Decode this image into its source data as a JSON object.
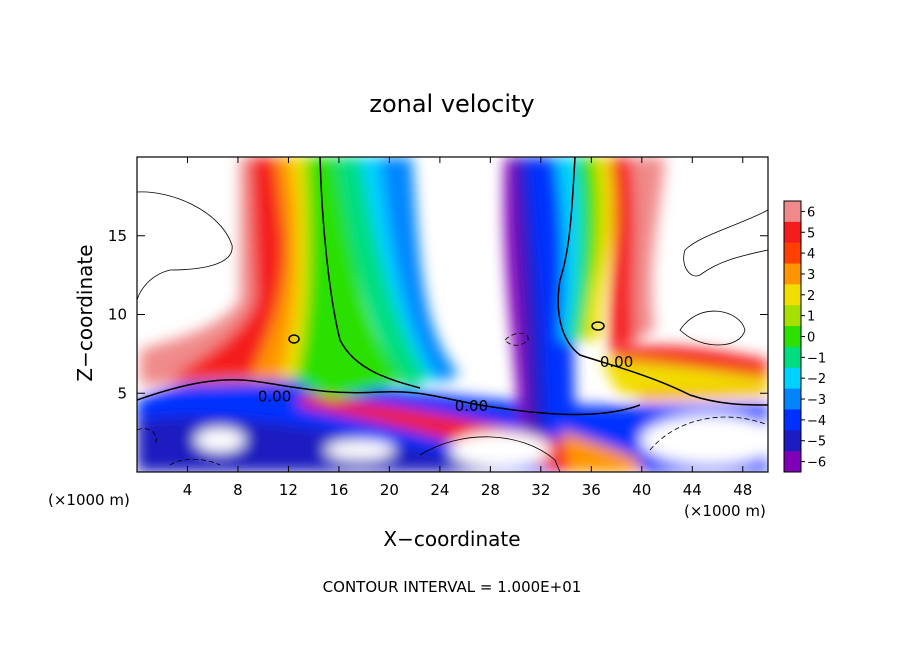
{
  "chart_data": {
    "type": "heatmap",
    "title": "zonal velocity",
    "xlabel": "X−coordinate",
    "ylabel": "Z−coordinate",
    "x_unit": "(×1000 m)",
    "y_unit": "(×1000 m)",
    "xlim": [
      0,
      50
    ],
    "ylim": [
      0,
      20
    ],
    "x_ticks": [
      4,
      8,
      12,
      16,
      20,
      24,
      28,
      32,
      36,
      40,
      44,
      48
    ],
    "x_tick_labels": [
      "4",
      "8",
      "12",
      "16",
      "20",
      "24",
      "28",
      "32",
      "36",
      "40",
      "44",
      "48"
    ],
    "y_ticks": [
      5,
      10,
      15
    ],
    "y_tick_labels": [
      "5",
      "10",
      "15"
    ],
    "colorbar": {
      "levels": [
        6,
        5,
        4,
        3,
        2,
        1,
        0,
        -1,
        -2,
        -3,
        -4,
        -5,
        -6
      ],
      "labels": [
        "6",
        "5",
        "4",
        "3",
        "2",
        "1",
        "0",
        "−1",
        "−2",
        "−3",
        "−4",
        "−5",
        "−6"
      ],
      "colors": [
        "#f08a8a",
        "#f41c1c",
        "#ff4000",
        "#ff9500",
        "#f2dd00",
        "#a6e000",
        "#2ce000",
        "#00dd80",
        "#00d2ff",
        "#0085ff",
        "#0030ff",
        "#1c1cc0",
        "#8000b8"
      ]
    },
    "contour_labels": [
      {
        "text": "0.00",
        "x": 10.9,
        "z": 4.8
      },
      {
        "text": "0.00",
        "x": 26.5,
        "z": 4.2
      },
      {
        "text": "0.00",
        "x": 38.0,
        "z": 7.0
      }
    ],
    "field_summary": {
      "positive_plume": {
        "x_range": [
          8,
          16
        ],
        "z_range": [
          5,
          20
        ],
        "peak": 6
      },
      "negative_plume": {
        "x_range": [
          30,
          36
        ],
        "z_range": [
          3,
          20
        ],
        "peak": -6
      },
      "descending_band": {
        "x_range": [
          0,
          42
        ],
        "z_range": [
          0,
          6
        ]
      }
    },
    "footer": "CONTOUR INTERVAL = 1.000E+01"
  }
}
